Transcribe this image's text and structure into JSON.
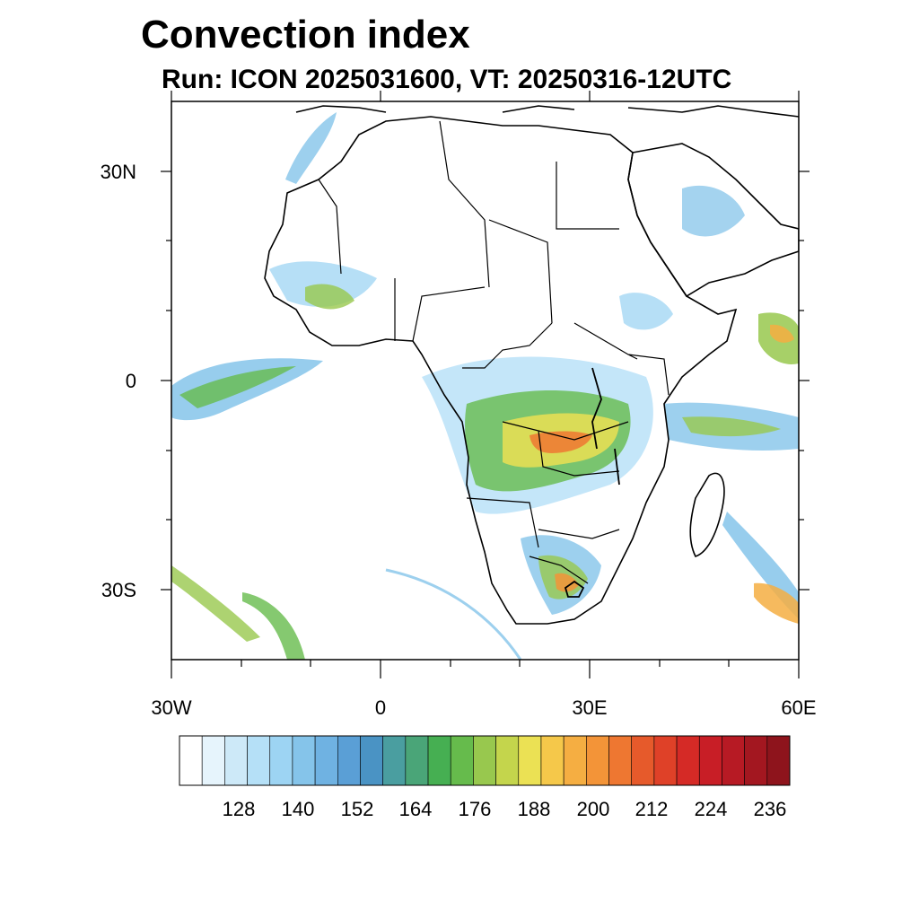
{
  "title": "Convection index",
  "subtitle": "Run: ICON 2025031600,  VT: 20250316-12UTC",
  "map": {
    "region": "Africa",
    "lon_range": [
      -30,
      60
    ],
    "lat_range": [
      -40,
      40
    ],
    "y_axis_labels": [
      "30N",
      "0",
      "30S"
    ],
    "x_axis_labels": [
      "30W",
      "0",
      "30E",
      "60E"
    ]
  },
  "colorbar": {
    "labels": [
      "128",
      "140",
      "152",
      "164",
      "176",
      "188",
      "200",
      "212",
      "224",
      "236"
    ],
    "colors": [
      "#ffffff",
      "#e6f4fc",
      "#cde9f8",
      "#b5e0f7",
      "#9dd4f3",
      "#85c4ea",
      "#6fb2e2",
      "#5a9fd6",
      "#4a93c4",
      "#4a9ea0",
      "#4aa578",
      "#46af52",
      "#66bb4c",
      "#98c84e",
      "#c4d54c",
      "#ebe154",
      "#f5c84a",
      "#f5ae42",
      "#f39438",
      "#ee7731",
      "#e65a2b",
      "#df4128",
      "#d52a26",
      "#c81e26",
      "#b71a24",
      "#a31720",
      "#8e141c"
    ]
  }
}
